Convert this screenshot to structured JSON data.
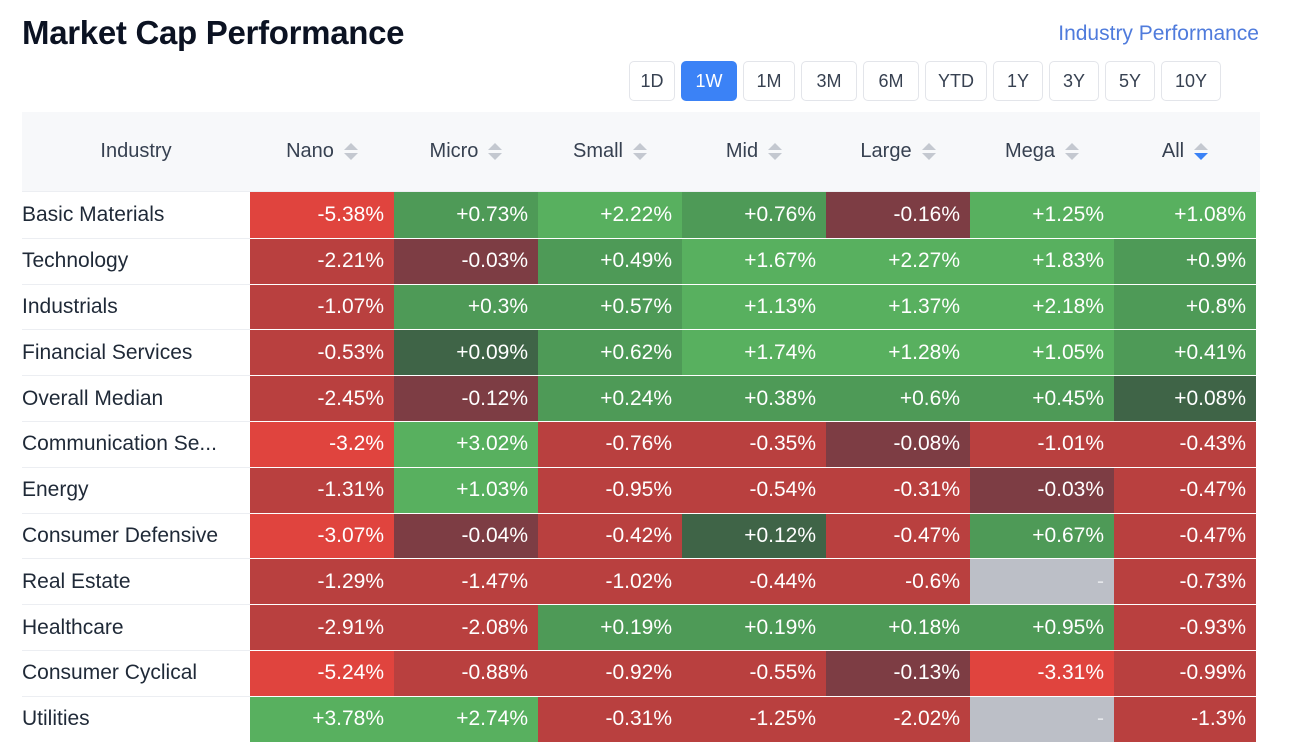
{
  "header": {
    "title": "Market Cap Performance",
    "industry_link": "Industry Performance"
  },
  "periods": {
    "active": "1W",
    "items": [
      "1D",
      "1W",
      "1M",
      "3M",
      "6M",
      "YTD",
      "1Y",
      "3Y",
      "5Y",
      "10Y"
    ]
  },
  "table": {
    "columns": [
      "Industry",
      "Nano",
      "Micro",
      "Small",
      "Mid",
      "Large",
      "Mega",
      "All"
    ],
    "sorted_column": "All",
    "colors": {
      "strong_red": "#e0443e",
      "red": "#b9403f",
      "dark_red": "#7d3d44",
      "dark_green": "#3f6447",
      "green": "#4e9a57",
      "light_green": "#58b05f",
      "na": "#bcbfc7"
    },
    "rows": [
      {
        "name": "Basic Materials",
        "values": [
          "-5.38%",
          "+0.73%",
          "+2.22%",
          "+0.76%",
          "-0.16%",
          "+1.25%",
          "+1.08%"
        ]
      },
      {
        "name": "Technology",
        "values": [
          "-2.21%",
          "-0.03%",
          "+0.49%",
          "+1.67%",
          "+2.27%",
          "+1.83%",
          "+0.9%"
        ]
      },
      {
        "name": "Industrials",
        "values": [
          "-1.07%",
          "+0.3%",
          "+0.57%",
          "+1.13%",
          "+1.37%",
          "+2.18%",
          "+0.8%"
        ]
      },
      {
        "name": "Financial Services",
        "values": [
          "-0.53%",
          "+0.09%",
          "+0.62%",
          "+1.74%",
          "+1.28%",
          "+1.05%",
          "+0.41%"
        ]
      },
      {
        "name": "Overall Median",
        "values": [
          "-2.45%",
          "-0.12%",
          "+0.24%",
          "+0.38%",
          "+0.6%",
          "+0.45%",
          "+0.08%"
        ]
      },
      {
        "name": "Communication Se...",
        "values": [
          "-3.2%",
          "+3.02%",
          "-0.76%",
          "-0.35%",
          "-0.08%",
          "-1.01%",
          "-0.43%"
        ]
      },
      {
        "name": "Energy",
        "values": [
          "-1.31%",
          "+1.03%",
          "-0.95%",
          "-0.54%",
          "-0.31%",
          "-0.03%",
          "-0.47%"
        ]
      },
      {
        "name": "Consumer Defensive",
        "values": [
          "-3.07%",
          "-0.04%",
          "-0.42%",
          "+0.12%",
          "-0.47%",
          "+0.67%",
          "-0.47%"
        ]
      },
      {
        "name": "Real Estate",
        "values": [
          "-1.29%",
          "-1.47%",
          "-1.02%",
          "-0.44%",
          "-0.6%",
          "-",
          "-0.73%"
        ]
      },
      {
        "name": "Healthcare",
        "values": [
          "-2.91%",
          "-2.08%",
          "+0.19%",
          "+0.19%",
          "+0.18%",
          "+0.95%",
          "-0.93%"
        ]
      },
      {
        "name": "Consumer Cyclical",
        "values": [
          "-5.24%",
          "-0.88%",
          "-0.92%",
          "-0.55%",
          "-0.13%",
          "-3.31%",
          "-0.99%"
        ]
      },
      {
        "name": "Utilities",
        "values": [
          "+3.78%",
          "+2.74%",
          "-0.31%",
          "-1.25%",
          "-2.02%",
          "-",
          "-1.3%"
        ]
      }
    ]
  }
}
